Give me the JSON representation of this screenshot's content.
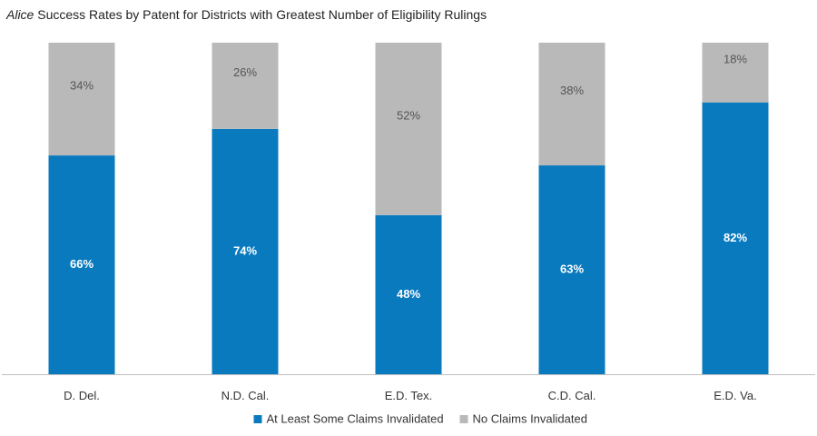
{
  "chart_data": {
    "type": "bar",
    "stacked": true,
    "percent_stacked": true,
    "title_prefix": "Alice",
    "title_rest": " Success Rates by Patent for Districts with Greatest Number of Eligibility Rulings",
    "categories": [
      "D. Del.",
      "N.D. Cal.",
      "E.D. Tex.",
      "C.D. Cal.",
      "E.D. Va."
    ],
    "series": [
      {
        "name": "At Least Some Claims Invalidated",
        "values": [
          66,
          74,
          48,
          63,
          82
        ],
        "color": "#0a7abf",
        "label_color": "#ffffff"
      },
      {
        "name": "No Claims Invalidated",
        "values": [
          34,
          26,
          52,
          38,
          18
        ],
        "color": "#b9b9b9",
        "label_color": "#555555"
      }
    ],
    "value_suffix": "%",
    "ylim": [
      0,
      100
    ],
    "grid": false,
    "legend_position": "bottom"
  }
}
